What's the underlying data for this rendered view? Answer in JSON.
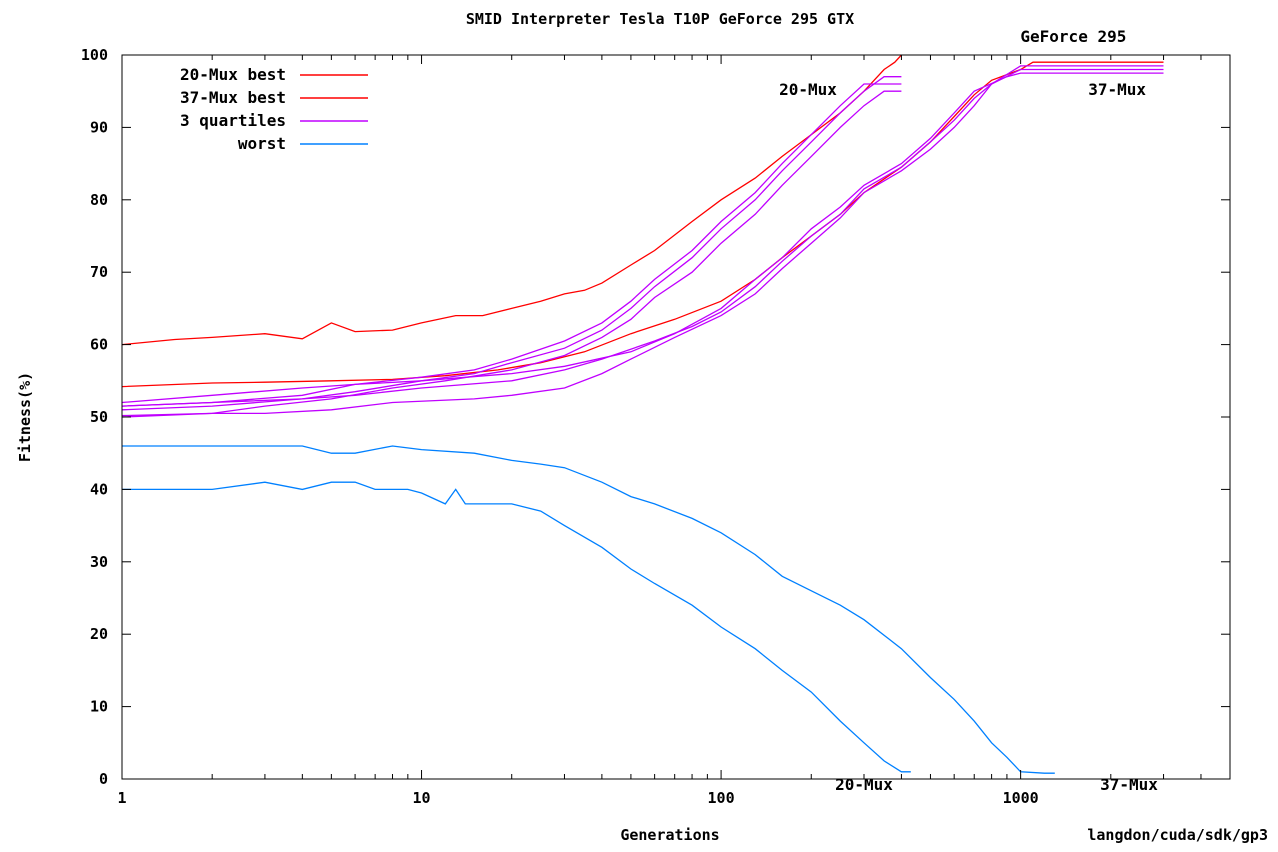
{
  "chart_data": {
    "type": "line",
    "title": "SMID Interpreter Tesla T10P GeForce 295 GTX",
    "xlabel": "Generations",
    "ylabel": "Fitness(%)",
    "x_scale": "log",
    "xlim": [
      1,
      5000
    ],
    "ylim": [
      0,
      100
    ],
    "x_ticks": [
      1,
      10,
      100,
      1000
    ],
    "y_ticks": [
      0,
      10,
      20,
      30,
      40,
      50,
      60,
      70,
      80,
      90,
      100
    ],
    "grid": false,
    "legend": "top-left",
    "footer": "langdon/cuda/sdk/gp3",
    "annotations": [
      {
        "text": "GeForce 295",
        "x": 1500,
        "y": 101.8
      },
      {
        "text": "20-Mux",
        "x": 195,
        "y": 94.5
      },
      {
        "text": "37-Mux",
        "x": 2100,
        "y": 94.5
      },
      {
        "text": "20-Mux",
        "x": 300,
        "y": -1.5
      },
      {
        "text": "37-Mux",
        "x": 2300,
        "y": -1.5
      }
    ],
    "legend_entries": [
      {
        "label": "20-Mux best",
        "color": "#ff0000"
      },
      {
        "label": "37-Mux best",
        "color": "#ff0000"
      },
      {
        "label": "3 quartiles",
        "color": "#c000ff"
      },
      {
        "label": "worst",
        "color": "#0080ff"
      }
    ],
    "series": [
      {
        "group": "20-Mux best",
        "color": "#ff0000",
        "points": [
          [
            1,
            60
          ],
          [
            1.5,
            60.7
          ],
          [
            2,
            61
          ],
          [
            3,
            61.5
          ],
          [
            4,
            60.8
          ],
          [
            5,
            63
          ],
          [
            6,
            61.8
          ],
          [
            8,
            62
          ],
          [
            10,
            63
          ],
          [
            13,
            64
          ],
          [
            16,
            64
          ],
          [
            20,
            65
          ],
          [
            25,
            66
          ],
          [
            30,
            67
          ],
          [
            35,
            67.5
          ],
          [
            40,
            68.5
          ],
          [
            50,
            71
          ],
          [
            60,
            73
          ],
          [
            80,
            77
          ],
          [
            100,
            80
          ],
          [
            130,
            83
          ],
          [
            160,
            86
          ],
          [
            200,
            89
          ],
          [
            250,
            92
          ],
          [
            300,
            95
          ],
          [
            350,
            98
          ],
          [
            380,
            99
          ],
          [
            400,
            100
          ]
        ]
      },
      {
        "group": "37-Mux best",
        "color": "#ff0000",
        "points": [
          [
            1,
            54.2
          ],
          [
            2,
            54.7
          ],
          [
            3,
            54.8
          ],
          [
            5,
            55
          ],
          [
            8,
            55.2
          ],
          [
            12,
            55.7
          ],
          [
            18,
            56.5
          ],
          [
            25,
            57.5
          ],
          [
            35,
            59
          ],
          [
            50,
            61.5
          ],
          [
            70,
            63.5
          ],
          [
            100,
            66
          ],
          [
            130,
            69
          ],
          [
            160,
            72
          ],
          [
            200,
            75
          ],
          [
            250,
            78
          ],
          [
            300,
            81
          ],
          [
            400,
            84.5
          ],
          [
            500,
            88
          ],
          [
            600,
            91.5
          ],
          [
            700,
            94.5
          ],
          [
            800,
            96.5
          ],
          [
            1000,
            98
          ],
          [
            1100,
            99
          ],
          [
            3000,
            99
          ]
        ]
      },
      {
        "group": "20-Mux quartiles",
        "color": "#c000ff",
        "points": [
          [
            1,
            51
          ],
          [
            2,
            51.5
          ],
          [
            4,
            52.5
          ],
          [
            6,
            53.5
          ],
          [
            10,
            55
          ],
          [
            15,
            56
          ],
          [
            20,
            57.5
          ],
          [
            30,
            59.5
          ],
          [
            40,
            62
          ],
          [
            50,
            65
          ],
          [
            60,
            68
          ],
          [
            80,
            72
          ],
          [
            100,
            76
          ],
          [
            130,
            80
          ],
          [
            160,
            84
          ],
          [
            200,
            88
          ],
          [
            250,
            92
          ],
          [
            300,
            95
          ],
          [
            350,
            97
          ],
          [
            400,
            97
          ]
        ]
      },
      {
        "group": "20-Mux quartiles",
        "color": "#c000ff",
        "points": [
          [
            1,
            51.5
          ],
          [
            2,
            52
          ],
          [
            4,
            53
          ],
          [
            6,
            54.5
          ],
          [
            10,
            55.5
          ],
          [
            15,
            56.5
          ],
          [
            20,
            58
          ],
          [
            30,
            60.5
          ],
          [
            40,
            63
          ],
          [
            50,
            66
          ],
          [
            60,
            69
          ],
          [
            80,
            73
          ],
          [
            100,
            77
          ],
          [
            130,
            81
          ],
          [
            160,
            85
          ],
          [
            200,
            89
          ],
          [
            250,
            93
          ],
          [
            300,
            96
          ],
          [
            400,
            96
          ]
        ]
      },
      {
        "group": "20-Mux quartiles",
        "color": "#c000ff",
        "points": [
          [
            1,
            50
          ],
          [
            2,
            50.5
          ],
          [
            3,
            51.5
          ],
          [
            5,
            52.5
          ],
          [
            8,
            54
          ],
          [
            12,
            55
          ],
          [
            20,
            56.5
          ],
          [
            30,
            58.5
          ],
          [
            40,
            61
          ],
          [
            50,
            63.5
          ],
          [
            60,
            66.5
          ],
          [
            80,
            70
          ],
          [
            100,
            74
          ],
          [
            130,
            78
          ],
          [
            160,
            82
          ],
          [
            200,
            86
          ],
          [
            250,
            90
          ],
          [
            300,
            93
          ],
          [
            350,
            95
          ],
          [
            400,
            95
          ]
        ]
      },
      {
        "group": "37-Mux quartiles",
        "color": "#c000ff",
        "points": [
          [
            1,
            50.2
          ],
          [
            2,
            50.5
          ],
          [
            3,
            50.5
          ],
          [
            5,
            51
          ],
          [
            8,
            52
          ],
          [
            15,
            52.5
          ],
          [
            20,
            53
          ],
          [
            30,
            54
          ],
          [
            40,
            56
          ],
          [
            50,
            58
          ],
          [
            70,
            61
          ],
          [
            100,
            64
          ],
          [
            130,
            67
          ],
          [
            160,
            70.5
          ],
          [
            200,
            74
          ],
          [
            250,
            77.5
          ],
          [
            300,
            81
          ],
          [
            400,
            84
          ],
          [
            500,
            87
          ],
          [
            600,
            90
          ],
          [
            700,
            93
          ],
          [
            800,
            96
          ],
          [
            1000,
            98.5
          ],
          [
            3000,
            98.5
          ]
        ]
      },
      {
        "group": "37-Mux quartiles",
        "color": "#c000ff",
        "points": [
          [
            1,
            51.5
          ],
          [
            2,
            52
          ],
          [
            4,
            52.5
          ],
          [
            6,
            53
          ],
          [
            10,
            54
          ],
          [
            20,
            55
          ],
          [
            30,
            56.5
          ],
          [
            40,
            58
          ],
          [
            60,
            60.5
          ],
          [
            80,
            62.5
          ],
          [
            100,
            64.5
          ],
          [
            130,
            68
          ],
          [
            160,
            71.5
          ],
          [
            200,
            75
          ],
          [
            250,
            78
          ],
          [
            300,
            81.5
          ],
          [
            400,
            84.5
          ],
          [
            500,
            88
          ],
          [
            600,
            91
          ],
          [
            700,
            94
          ],
          [
            800,
            96
          ],
          [
            1000,
            98
          ],
          [
            3000,
            98
          ]
        ]
      },
      {
        "group": "37-Mux quartiles",
        "color": "#c000ff",
        "points": [
          [
            1,
            52
          ],
          [
            2,
            53
          ],
          [
            4,
            54
          ],
          [
            6,
            54.5
          ],
          [
            10,
            55
          ],
          [
            20,
            56
          ],
          [
            30,
            57
          ],
          [
            50,
            59
          ],
          [
            70,
            61.5
          ],
          [
            100,
            65
          ],
          [
            130,
            69
          ],
          [
            160,
            72
          ],
          [
            200,
            76
          ],
          [
            250,
            79
          ],
          [
            300,
            82
          ],
          [
            400,
            85
          ],
          [
            500,
            88.5
          ],
          [
            600,
            92
          ],
          [
            700,
            95
          ],
          [
            900,
            97
          ],
          [
            1000,
            97.5
          ],
          [
            3000,
            97.5
          ]
        ]
      },
      {
        "group": "37-Mux worst",
        "color": "#0080ff",
        "points": [
          [
            1,
            46
          ],
          [
            2,
            46
          ],
          [
            4,
            46
          ],
          [
            5,
            45
          ],
          [
            6,
            45
          ],
          [
            8,
            46
          ],
          [
            10,
            45.5
          ],
          [
            15,
            45
          ],
          [
            20,
            44
          ],
          [
            25,
            43.5
          ],
          [
            30,
            43
          ],
          [
            40,
            41
          ],
          [
            50,
            39
          ],
          [
            60,
            38
          ],
          [
            80,
            36
          ],
          [
            100,
            34
          ],
          [
            130,
            31
          ],
          [
            160,
            28
          ],
          [
            200,
            26
          ],
          [
            250,
            24
          ],
          [
            300,
            22
          ],
          [
            400,
            18
          ],
          [
            500,
            14
          ],
          [
            600,
            11
          ],
          [
            700,
            8
          ],
          [
            800,
            5
          ],
          [
            900,
            3
          ],
          [
            1000,
            1
          ],
          [
            1200,
            0.8
          ],
          [
            1300,
            0.8
          ]
        ]
      },
      {
        "group": "20-Mux worst",
        "color": "#0080ff",
        "points": [
          [
            1,
            40
          ],
          [
            2,
            40
          ],
          [
            3,
            41
          ],
          [
            4,
            40
          ],
          [
            5,
            41
          ],
          [
            6,
            41
          ],
          [
            7,
            40
          ],
          [
            9,
            40
          ],
          [
            10,
            39.5
          ],
          [
            12,
            38
          ],
          [
            13,
            40
          ],
          [
            14,
            38
          ],
          [
            20,
            38
          ],
          [
            25,
            37
          ],
          [
            30,
            35
          ],
          [
            40,
            32
          ],
          [
            50,
            29
          ],
          [
            60,
            27
          ],
          [
            80,
            24
          ],
          [
            100,
            21
          ],
          [
            130,
            18
          ],
          [
            160,
            15
          ],
          [
            200,
            12
          ],
          [
            250,
            8
          ],
          [
            300,
            5
          ],
          [
            350,
            2.5
          ],
          [
            400,
            1
          ],
          [
            430,
            1
          ]
        ]
      }
    ]
  }
}
